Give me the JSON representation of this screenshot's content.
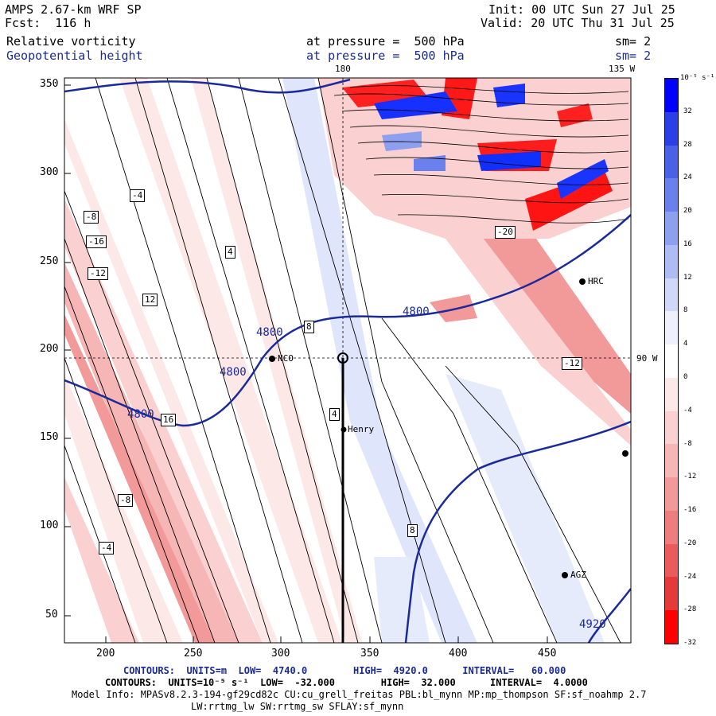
{
  "header": {
    "model_title": "AMPS 2.67-km WRF SP",
    "forecast": "Fcst:  116 h",
    "init": "Init: 00 UTC Sun 27 Jul 25",
    "valid": "Valid: 20 UTC Thu 31 Jul 25",
    "field1_name": "Relative vorticity",
    "field1_level": "at pressure =  500 hPa",
    "field1_smooth": "sm= 2",
    "field2_name": "Geopotential height",
    "field2_level": "at pressure =  500 hPa",
    "field2_smooth": "sm= 2"
  },
  "map": {
    "longitude_labels": [
      "180",
      "135 W",
      "90 W"
    ],
    "x_ticks": [
      "200",
      "250",
      "300",
      "350",
      "400",
      "450"
    ],
    "y_ticks": [
      "350",
      "300",
      "250",
      "200",
      "150",
      "100",
      "50"
    ],
    "stations": [
      "NCO",
      "Henry",
      "HRC",
      "AGZ"
    ],
    "height_contour_labels": [
      "4800",
      "4800",
      "4800",
      "4800",
      "4920"
    ],
    "vorticity_labels": [
      "-4",
      "-8",
      "-12",
      "-16",
      "4",
      "8",
      "12",
      "16",
      "-20",
      "-12",
      "-8",
      "-4",
      "4",
      "8"
    ]
  },
  "colorbar": {
    "unit": "10⁻⁵ s⁻¹",
    "labels": [
      "32",
      "28",
      "24",
      "20",
      "16",
      "12",
      "8",
      "4",
      "0",
      "-4",
      "-8",
      "-12",
      "-16",
      "-20",
      "-24",
      "-28",
      "-32"
    ],
    "colors": [
      "#0000ff",
      "#2a3fe6",
      "#4a60e6",
      "#6a80ec",
      "#8da0f0",
      "#aebcf4",
      "#cfd8f8",
      "#eef0fc",
      "#ffffff",
      "#fde8e8",
      "#fbd0d0",
      "#f7b6b6",
      "#f29a9a",
      "#ee7e7e",
      "#ea5c5c",
      "#e43a3a",
      "#ff0000"
    ]
  },
  "footer": {
    "contours1": "CONTOURS:  UNITS=m  LOW=  4740.0        HIGH=  4920.0      INTERVAL=   60.000",
    "contours2": "CONTOURS:  UNITS=10⁻⁵ s⁻¹  LOW=  -32.000        HIGH=  32.000      INTERVAL=  4.0000",
    "model_info": "Model Info: MPASv8.2.3-194-gf29cd82c CU:cu_grell_freitas PBL:bl_mynn MP:mp_thompson SF:sf_noahmp 2.7",
    "physics": "LW:rrtmg_lw SW:rrtmg_sw SFLAY:sf_mynn"
  }
}
